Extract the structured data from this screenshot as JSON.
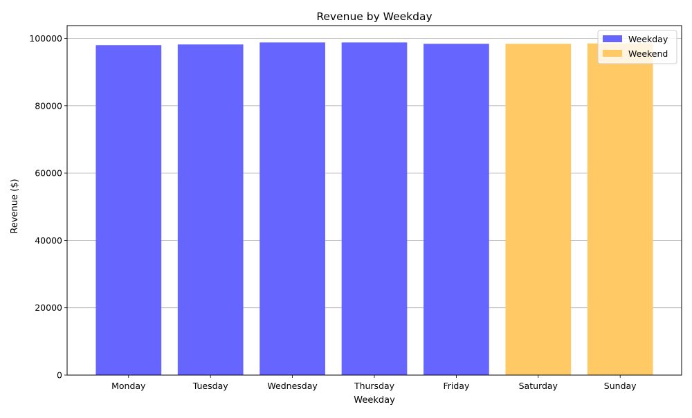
{
  "chart_data": {
    "type": "bar",
    "title": "Revenue by Weekday",
    "xlabel": "Weekday",
    "ylabel": "Revenue ($)",
    "categories": [
      "Monday",
      "Tuesday",
      "Wednesday",
      "Thursday",
      "Friday",
      "Saturday",
      "Sunday"
    ],
    "series": [
      {
        "name": "Weekday",
        "color": "#6666ff",
        "values": [
          98000,
          98200,
          98800,
          98800,
          98400,
          null,
          null
        ]
      },
      {
        "name": "Weekend",
        "color": "#ffc966",
        "values": [
          null,
          null,
          null,
          null,
          null,
          98400,
          98500
        ]
      }
    ],
    "ylim": [
      0,
      103800
    ],
    "yticks": [
      0,
      20000,
      40000,
      60000,
      80000,
      100000
    ],
    "ytick_labels": [
      "0",
      "20000",
      "40000",
      "60000",
      "80000",
      "100000"
    ],
    "grid": "horizontal",
    "legend_position": "top-right"
  }
}
